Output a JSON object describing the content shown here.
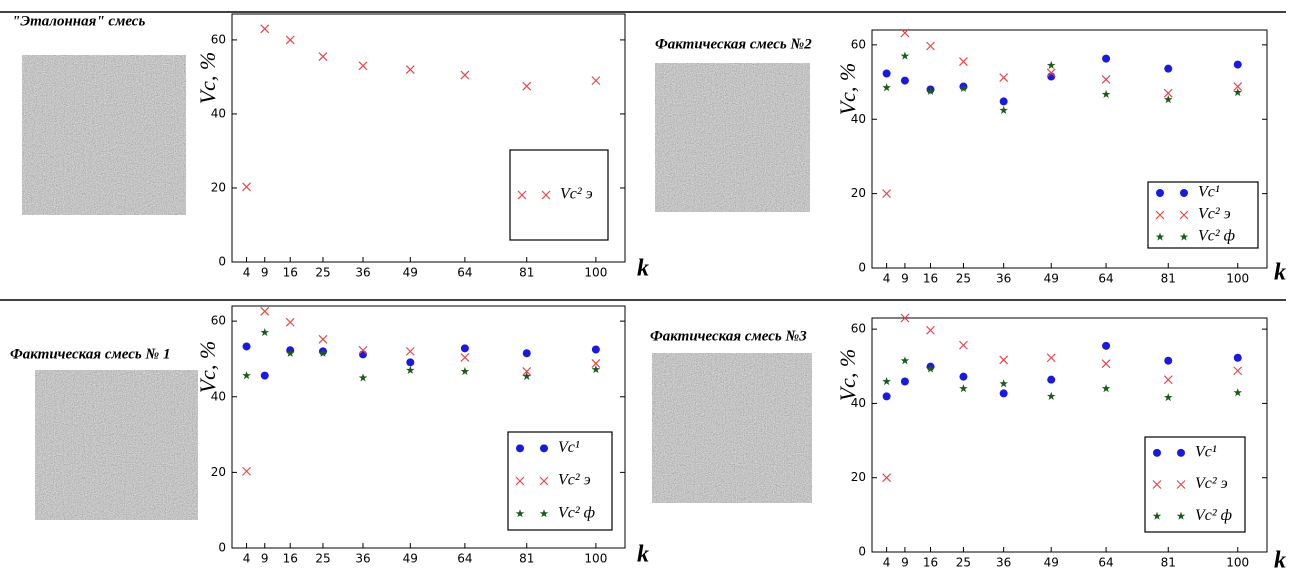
{
  "chart_data": [
    {
      "type": "scatter",
      "title": "\"Эталонная\" смесь",
      "xlabel": "k",
      "ylabel": "Vc, %",
      "x": [
        4,
        9,
        16,
        25,
        36,
        49,
        64,
        81,
        100
      ],
      "xlim": [
        0,
        108
      ],
      "xticks": [
        4,
        9,
        16,
        25,
        36,
        49,
        64,
        81,
        100
      ],
      "ylim": [
        0,
        67
      ],
      "yticks": [
        0,
        20,
        40,
        60
      ],
      "legend": "lower right",
      "series": [
        {
          "name": "Vc² э",
          "color": "#e8454a",
          "marker": "x",
          "values": [
            20.3,
            63,
            60,
            55.5,
            53,
            52,
            50.5,
            47.5,
            49
          ]
        }
      ]
    },
    {
      "type": "scatter",
      "title": "Фактическая смесь №2",
      "xlabel": "k",
      "ylabel": "Vc, %",
      "x": [
        4,
        9,
        16,
        25,
        36,
        49,
        64,
        81,
        100
      ],
      "xlim": [
        0,
        108
      ],
      "xticks": [
        4,
        9,
        16,
        25,
        36,
        49,
        64,
        81,
        100
      ],
      "ylim": [
        0,
        64
      ],
      "yticks": [
        0,
        20,
        40,
        60
      ],
      "legend": "lower right",
      "series": [
        {
          "name": "Vc¹",
          "color": "#1a1adf",
          "marker": "o",
          "values": [
            52.3,
            50.4,
            48,
            48.8,
            44.8,
            51.5,
            56.3,
            53.6,
            54.7
          ]
        },
        {
          "name": "Vc² э",
          "color": "#e8454a",
          "marker": "x",
          "values": [
            20,
            63.2,
            59.7,
            55.5,
            51.2,
            52.5,
            50.7,
            47,
            48.8
          ]
        },
        {
          "name": "Vc² ф",
          "color": "#1e5a1e",
          "marker": "*",
          "values": [
            48.5,
            57,
            47.5,
            48.3,
            42.4,
            54.5,
            46.7,
            45.3,
            47.2
          ]
        }
      ]
    },
    {
      "type": "scatter",
      "title": "Фактическая смесь № 1",
      "xlabel": "k",
      "ylabel": "Vc, %",
      "x": [
        4,
        9,
        16,
        25,
        36,
        49,
        64,
        81,
        100
      ],
      "xlim": [
        0,
        108
      ],
      "xticks": [
        4,
        9,
        16,
        25,
        36,
        49,
        64,
        81,
        100
      ],
      "ylim": [
        0,
        64
      ],
      "yticks": [
        0,
        20,
        40,
        60
      ],
      "legend": "lower right",
      "series": [
        {
          "name": "Vc¹",
          "color": "#1a1adf",
          "marker": "o",
          "values": [
            53.3,
            45.6,
            52.3,
            52,
            51.2,
            49.1,
            52.8,
            51.5,
            52.5
          ]
        },
        {
          "name": "Vc² э",
          "color": "#e8454a",
          "marker": "x",
          "values": [
            20.3,
            62.6,
            59.7,
            55.2,
            52.3,
            52,
            50.4,
            46.7,
            48.8
          ]
        },
        {
          "name": "Vc² ф",
          "color": "#1e5a1e",
          "marker": "*",
          "values": [
            45.6,
            57,
            51.5,
            51.5,
            45,
            47,
            46.7,
            45.4,
            47.2
          ]
        }
      ]
    },
    {
      "type": "scatter",
      "title": "Фактическая смесь №3",
      "xlabel": "k",
      "ylabel": "Vc, %",
      "x": [
        4,
        9,
        16,
        25,
        36,
        49,
        64,
        81,
        100
      ],
      "xlim": [
        0,
        108
      ],
      "xticks": [
        4,
        9,
        16,
        25,
        36,
        49,
        64,
        81,
        100
      ],
      "ylim": [
        0,
        63
      ],
      "yticks": [
        0,
        20,
        40,
        60
      ],
      "legend": "lower right",
      "series": [
        {
          "name": "Vc¹",
          "color": "#1a1adf",
          "marker": "o",
          "values": [
            41.9,
            45.9,
            49.9,
            47.2,
            42.7,
            46.4,
            55.5,
            51.5,
            52.3
          ]
        },
        {
          "name": "Vc² э",
          "color": "#e8454a",
          "marker": "x",
          "values": [
            20,
            63,
            59.7,
            55.7,
            51.7,
            52.3,
            50.7,
            46.4,
            48.8
          ]
        },
        {
          "name": "Vc² ф",
          "color": "#1e5a1e",
          "marker": "*",
          "values": [
            45.9,
            51.5,
            49.3,
            44,
            45.3,
            41.9,
            44,
            41.6,
            42.9
          ]
        }
      ]
    }
  ]
}
